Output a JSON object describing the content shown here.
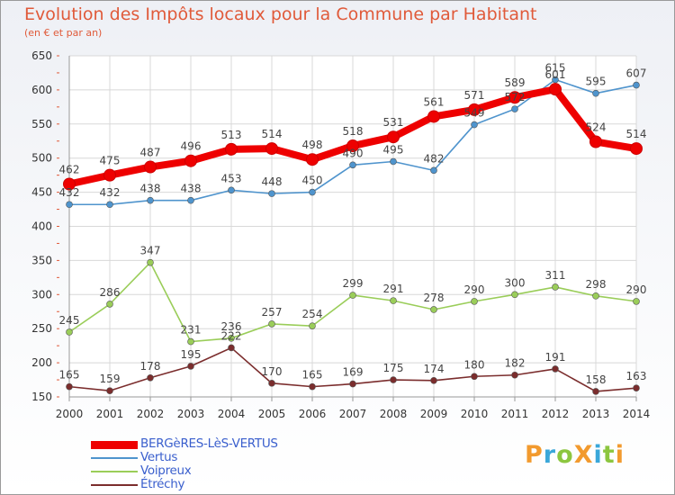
{
  "title": "Evolution des Impôts locaux pour la Commune par Habitant",
  "subtitle": "(en € et par an)",
  "logo": {
    "text": "ProXiti",
    "colors": [
      "#f29a2e",
      "#3aa7d9",
      "#8cc63f",
      "#f29a2e",
      "#3aa7d9",
      "#8cc63f",
      "#f29a2e"
    ]
  },
  "chart_data": {
    "type": "line",
    "x": [
      2000,
      2001,
      2002,
      2003,
      2004,
      2005,
      2006,
      2007,
      2008,
      2009,
      2010,
      2011,
      2012,
      2013,
      2014
    ],
    "ylim": [
      150,
      650
    ],
    "yticks": [
      150,
      200,
      250,
      300,
      350,
      400,
      450,
      500,
      550,
      600,
      650
    ],
    "grid": true,
    "legend_position": "bottom-left",
    "series": [
      {
        "name": "BERGèRES-LèS-VERTUS",
        "color": "#ee0000",
        "values": [
          462,
          475,
          487,
          496,
          513,
          514,
          498,
          518,
          531,
          561,
          571,
          589,
          601,
          524,
          514
        ]
      },
      {
        "name": "Vertus",
        "color": "#4f94cd",
        "values": [
          432,
          432,
          438,
          438,
          453,
          448,
          450,
          490,
          495,
          482,
          549,
          572,
          615,
          595,
          607
        ]
      },
      {
        "name": "Voipreux",
        "color": "#9acd59",
        "values": [
          245,
          286,
          347,
          231,
          236,
          257,
          254,
          299,
          291,
          278,
          290,
          300,
          311,
          298,
          290
        ]
      },
      {
        "name": "Étréchy",
        "color": "#7b2d2d",
        "values": [
          165,
          159,
          178,
          195,
          222,
          170,
          165,
          169,
          175,
          174,
          180,
          182,
          191,
          158,
          163
        ]
      }
    ]
  }
}
